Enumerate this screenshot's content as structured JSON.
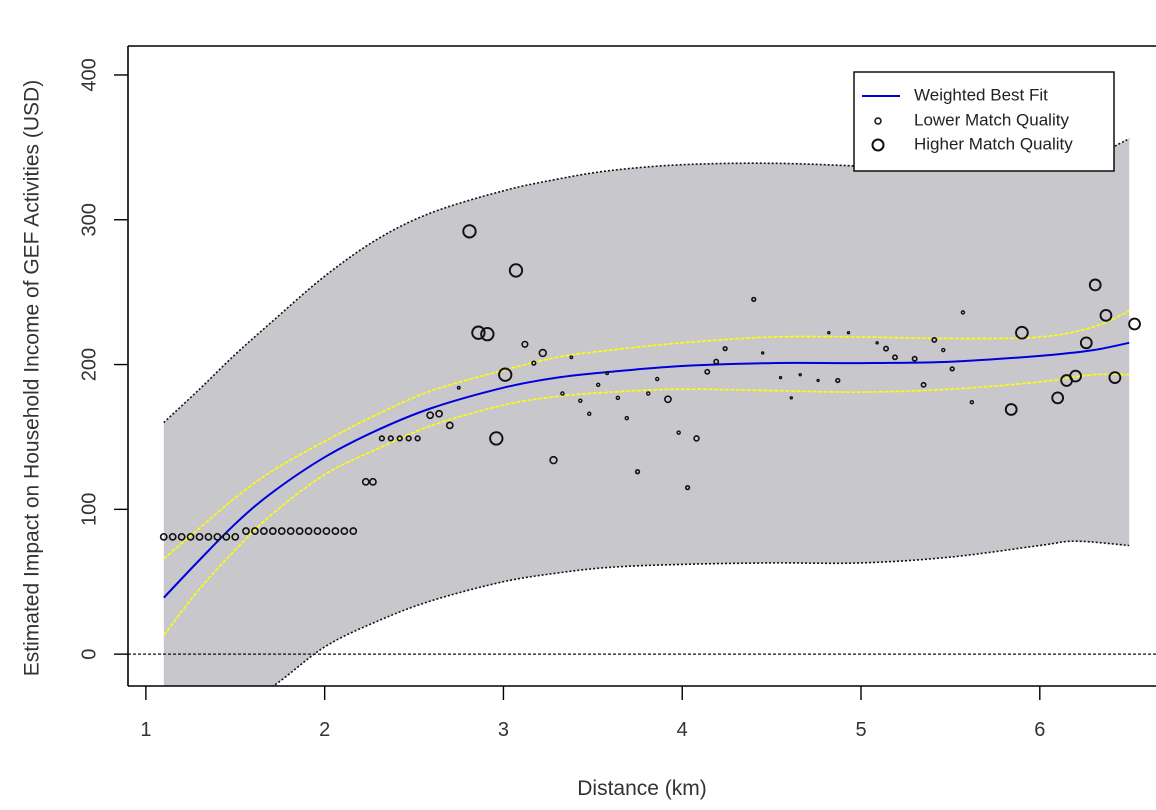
{
  "chart_data": {
    "type": "scatter",
    "title": "",
    "xlabel": "Distance (km)",
    "ylabel": "Estimated Impact on Household Income of GEF Activities (USD)",
    "xlim": [
      0.9,
      6.65
    ],
    "ylim": [
      -22,
      420
    ],
    "xticks": [
      1,
      2,
      3,
      4,
      5,
      6
    ],
    "yticks": [
      0,
      100,
      200,
      300,
      400
    ],
    "grid": false,
    "legend_position": "top-right",
    "legend": [
      {
        "label": "Weighted Best Fit",
        "kind": "line"
      },
      {
        "label": "Lower Match Quality",
        "kind": "small-circle"
      },
      {
        "label": "Higher Match Quality",
        "kind": "large-circle"
      }
    ],
    "colors": {
      "fit_line": "#0000dd",
      "confidence_band": "#ffff00",
      "prediction_band_fill": "#c8c8cc",
      "prediction_band_edge": "#111111",
      "points": "#111111"
    },
    "reference_line_y": 0,
    "prediction_band": {
      "x": [
        1.1,
        1.3,
        1.5,
        1.7,
        2.0,
        2.3,
        2.6,
        3.0,
        3.3,
        3.6,
        4.0,
        4.5,
        5.0,
        5.5,
        6.0,
        6.2,
        6.5
      ],
      "upper": [
        160,
        183,
        207,
        229,
        261,
        287,
        305,
        320,
        328,
        334,
        338,
        339,
        337,
        334,
        335,
        338,
        356
      ],
      "lower": [
        -40,
        -37,
        -33,
        -23,
        5,
        23,
        37,
        50,
        56,
        60,
        62,
        63,
        63,
        67,
        75,
        78,
        75
      ]
    },
    "confidence_band": {
      "x": [
        1.1,
        1.3,
        1.5,
        1.7,
        2.0,
        2.3,
        2.6,
        3.0,
        3.3,
        3.6,
        4.0,
        4.5,
        5.0,
        5.5,
        6.0,
        6.3,
        6.5
      ],
      "upper": [
        66,
        87,
        108,
        126,
        147,
        166,
        182,
        196,
        205,
        210,
        215,
        219,
        219,
        218,
        219,
        226,
        237
      ],
      "lower": [
        13,
        45,
        72,
        96,
        124,
        142,
        158,
        172,
        178,
        181,
        183,
        182,
        181,
        183,
        188,
        193,
        193
      ]
    },
    "fit_line": {
      "x": [
        1.1,
        1.3,
        1.5,
        1.7,
        2.0,
        2.3,
        2.6,
        3.0,
        3.3,
        3.6,
        4.0,
        4.5,
        5.0,
        5.5,
        6.0,
        6.3,
        6.5
      ],
      "y": [
        39,
        65,
        90,
        111,
        136,
        155,
        170,
        184,
        191,
        195,
        199,
        201,
        201,
        202,
        206,
        210,
        215
      ]
    },
    "points": [
      {
        "x": 1.1,
        "y": 81,
        "size": 2
      },
      {
        "x": 1.15,
        "y": 81,
        "size": 2
      },
      {
        "x": 1.2,
        "y": 81,
        "size": 2
      },
      {
        "x": 1.25,
        "y": 81,
        "size": 2
      },
      {
        "x": 1.3,
        "y": 81,
        "size": 2
      },
      {
        "x": 1.35,
        "y": 81,
        "size": 2
      },
      {
        "x": 1.4,
        "y": 81,
        "size": 2
      },
      {
        "x": 1.45,
        "y": 81,
        "size": 2
      },
      {
        "x": 1.5,
        "y": 81,
        "size": 2
      },
      {
        "x": 1.56,
        "y": 85,
        "size": 2
      },
      {
        "x": 1.61,
        "y": 85,
        "size": 2
      },
      {
        "x": 1.66,
        "y": 85,
        "size": 2
      },
      {
        "x": 1.71,
        "y": 85,
        "size": 2
      },
      {
        "x": 1.76,
        "y": 85,
        "size": 2
      },
      {
        "x": 1.81,
        "y": 85,
        "size": 2
      },
      {
        "x": 1.86,
        "y": 85,
        "size": 2
      },
      {
        "x": 1.91,
        "y": 85,
        "size": 2
      },
      {
        "x": 1.96,
        "y": 85,
        "size": 2
      },
      {
        "x": 2.01,
        "y": 85,
        "size": 2
      },
      {
        "x": 2.06,
        "y": 85,
        "size": 2
      },
      {
        "x": 2.11,
        "y": 85,
        "size": 2
      },
      {
        "x": 2.16,
        "y": 85,
        "size": 2
      },
      {
        "x": 2.23,
        "y": 119,
        "size": 2
      },
      {
        "x": 2.27,
        "y": 119,
        "size": 2
      },
      {
        "x": 2.32,
        "y": 149,
        "size": 1.5
      },
      {
        "x": 2.37,
        "y": 149,
        "size": 1.5
      },
      {
        "x": 2.42,
        "y": 149,
        "size": 1.5
      },
      {
        "x": 2.47,
        "y": 149,
        "size": 1.5
      },
      {
        "x": 2.52,
        "y": 149,
        "size": 1.5
      },
      {
        "x": 2.59,
        "y": 165,
        "size": 2
      },
      {
        "x": 2.64,
        "y": 166,
        "size": 2
      },
      {
        "x": 2.7,
        "y": 158,
        "size": 2
      },
      {
        "x": 2.75,
        "y": 184,
        "size": 0.8
      },
      {
        "x": 2.81,
        "y": 292,
        "size": 4
      },
      {
        "x": 2.86,
        "y": 222,
        "size": 4
      },
      {
        "x": 2.91,
        "y": 221,
        "size": 4
      },
      {
        "x": 2.96,
        "y": 149,
        "size": 4
      },
      {
        "x": 3.01,
        "y": 193,
        "size": 4
      },
      {
        "x": 3.07,
        "y": 265,
        "size": 4
      },
      {
        "x": 3.12,
        "y": 214,
        "size": 1.8
      },
      {
        "x": 3.17,
        "y": 201,
        "size": 1.2
      },
      {
        "x": 3.22,
        "y": 208,
        "size": 2.2
      },
      {
        "x": 3.28,
        "y": 134,
        "size": 2.2
      },
      {
        "x": 3.33,
        "y": 180,
        "size": 1
      },
      {
        "x": 3.38,
        "y": 205,
        "size": 0.8
      },
      {
        "x": 3.43,
        "y": 175,
        "size": 1
      },
      {
        "x": 3.48,
        "y": 166,
        "size": 1
      },
      {
        "x": 3.53,
        "y": 186,
        "size": 1
      },
      {
        "x": 3.58,
        "y": 194,
        "size": 0.8
      },
      {
        "x": 3.64,
        "y": 177,
        "size": 1
      },
      {
        "x": 3.69,
        "y": 163,
        "size": 1
      },
      {
        "x": 3.75,
        "y": 126,
        "size": 1.2
      },
      {
        "x": 3.81,
        "y": 180,
        "size": 1
      },
      {
        "x": 3.86,
        "y": 190,
        "size": 1
      },
      {
        "x": 3.92,
        "y": 176,
        "size": 2
      },
      {
        "x": 3.98,
        "y": 153,
        "size": 1
      },
      {
        "x": 4.03,
        "y": 115,
        "size": 1.2
      },
      {
        "x": 4.08,
        "y": 149,
        "size": 1.6
      },
      {
        "x": 4.14,
        "y": 195,
        "size": 1.4
      },
      {
        "x": 4.19,
        "y": 202,
        "size": 1.4
      },
      {
        "x": 4.24,
        "y": 211,
        "size": 1.2
      },
      {
        "x": 4.4,
        "y": 245,
        "size": 1.2
      },
      {
        "x": 4.45,
        "y": 208,
        "size": 0.6
      },
      {
        "x": 4.55,
        "y": 191,
        "size": 0.6
      },
      {
        "x": 4.61,
        "y": 177,
        "size": 0.6
      },
      {
        "x": 4.66,
        "y": 193,
        "size": 0.6
      },
      {
        "x": 4.76,
        "y": 189,
        "size": 0.6
      },
      {
        "x": 4.82,
        "y": 222,
        "size": 0.6
      },
      {
        "x": 4.87,
        "y": 189,
        "size": 1.2
      },
      {
        "x": 4.93,
        "y": 222,
        "size": 0.6
      },
      {
        "x": 5.09,
        "y": 215,
        "size": 0.6
      },
      {
        "x": 5.14,
        "y": 211,
        "size": 1.4
      },
      {
        "x": 5.19,
        "y": 205,
        "size": 1.4
      },
      {
        "x": 5.3,
        "y": 204,
        "size": 1.4
      },
      {
        "x": 5.35,
        "y": 186,
        "size": 1.4
      },
      {
        "x": 5.41,
        "y": 217,
        "size": 1.4
      },
      {
        "x": 5.46,
        "y": 210,
        "size": 1
      },
      {
        "x": 5.51,
        "y": 197,
        "size": 1.2
      },
      {
        "x": 5.57,
        "y": 236,
        "size": 1
      },
      {
        "x": 5.62,
        "y": 174,
        "size": 1
      },
      {
        "x": 5.84,
        "y": 169,
        "size": 3.5
      },
      {
        "x": 5.9,
        "y": 222,
        "size": 3.8
      },
      {
        "x": 6.1,
        "y": 177,
        "size": 3.5
      },
      {
        "x": 6.15,
        "y": 189,
        "size": 3.5
      },
      {
        "x": 6.2,
        "y": 192,
        "size": 3.5
      },
      {
        "x": 6.26,
        "y": 215,
        "size": 3.5
      },
      {
        "x": 6.31,
        "y": 255,
        "size": 3.5
      },
      {
        "x": 6.37,
        "y": 234,
        "size": 3.5
      },
      {
        "x": 6.42,
        "y": 191,
        "size": 3.5
      },
      {
        "x": 6.53,
        "y": 228,
        "size": 3.5
      }
    ]
  }
}
